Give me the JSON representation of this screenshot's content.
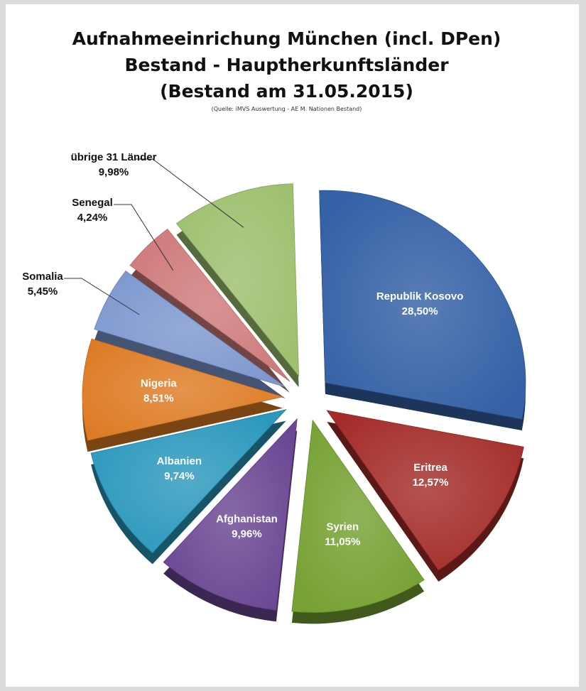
{
  "chart_data": {
    "type": "pie",
    "title": [
      "Aufnahmeeinrichung München (incl. DPen)",
      "Bestand - Hauptherkunftsländer",
      "(Bestand am 31.05.2015)"
    ],
    "subtitle": "(Quelle: iMVS Auswertung - AE M. Nationen Bestand)",
    "slices": [
      {
        "label": "Republik Kosovo",
        "value": 28.5,
        "display": "28,50%",
        "color": "#3561a6",
        "label_pos": "inside"
      },
      {
        "label": "Eritrea",
        "value": 12.57,
        "display": "12,57%",
        "color": "#a42d2a",
        "label_pos": "inside"
      },
      {
        "label": "Syrien",
        "value": 11.05,
        "display": "11,05%",
        "color": "#76a133",
        "label_pos": "inside"
      },
      {
        "label": "Afghanistan",
        "value": 9.96,
        "display": "9,96%",
        "color": "#6b4793",
        "label_pos": "inside"
      },
      {
        "label": "Albanien",
        "value": 9.74,
        "display": "9,74%",
        "color": "#2c98bd",
        "label_pos": "inside"
      },
      {
        "label": "Nigeria",
        "value": 8.51,
        "display": "8,51%",
        "color": "#de7c26",
        "label_pos": "inside"
      },
      {
        "label": "Somalia",
        "value": 5.45,
        "display": "5,45%",
        "color": "#7e98cf",
        "label_pos": "outside"
      },
      {
        "label": "Senegal",
        "value": 4.24,
        "display": "4,24%",
        "color": "#cf7b7b",
        "label_pos": "outside"
      },
      {
        "label": "übrige 31 Länder",
        "value": 9.98,
        "display": "9,98%",
        "color": "#9fc06f",
        "label_pos": "outside"
      }
    ]
  }
}
